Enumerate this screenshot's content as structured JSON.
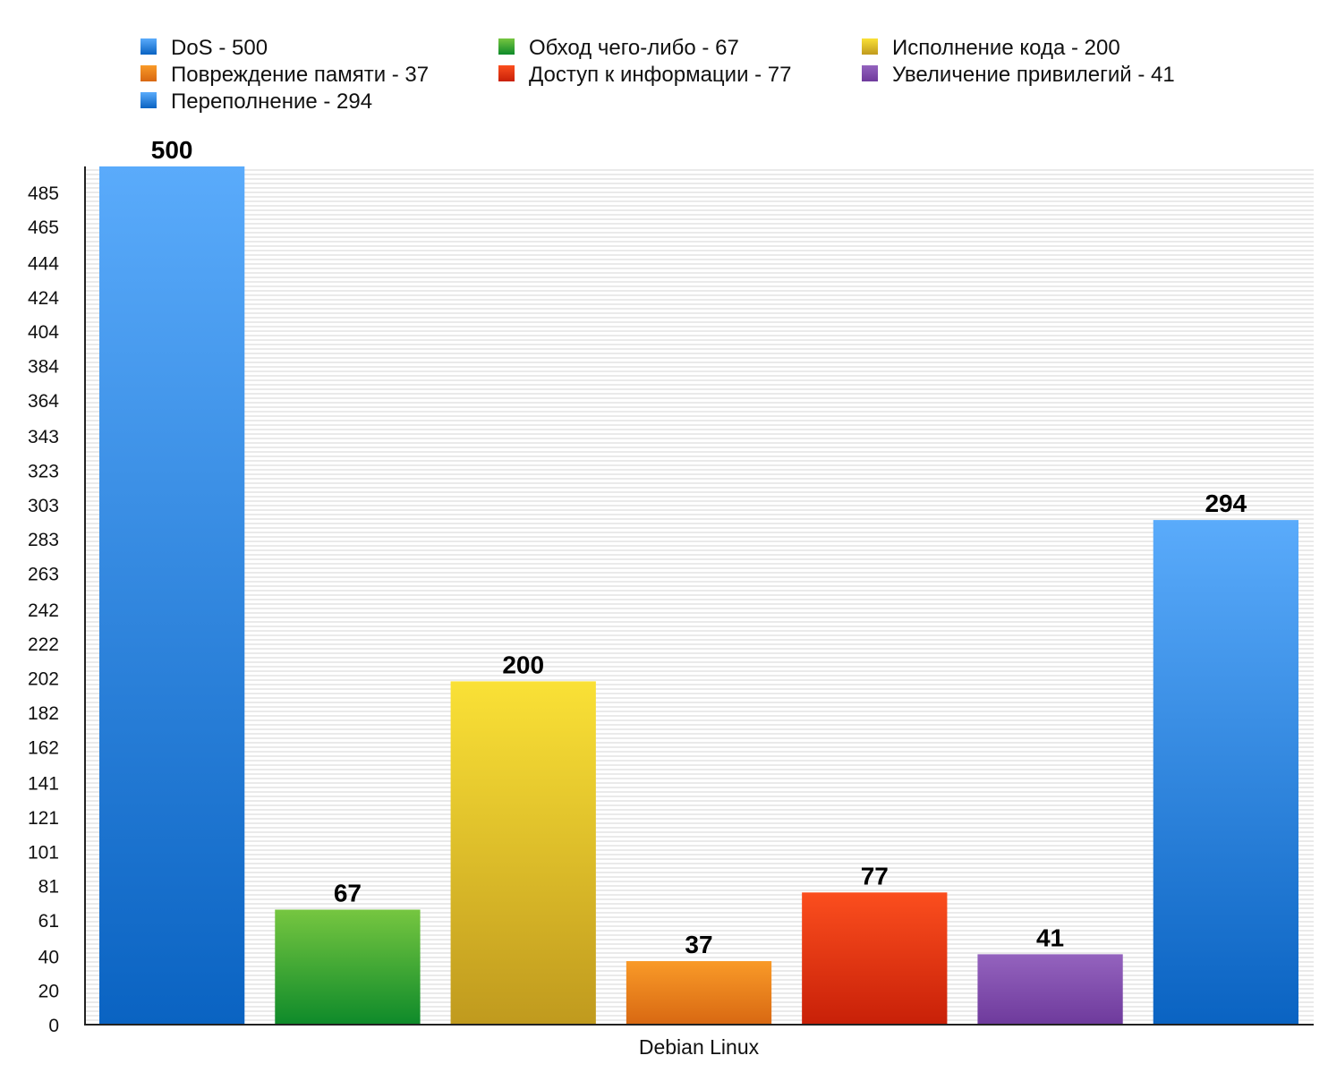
{
  "chart_data": {
    "type": "bar",
    "title": "",
    "xlabel": "",
    "ylabel": "",
    "categories": [
      "Debian Linux"
    ],
    "ylim": [
      0,
      500
    ],
    "yticks": [
      "0",
      "20",
      "40",
      "61",
      "81",
      "101",
      "121",
      "141",
      "162",
      "182",
      "202",
      "222",
      "242",
      "263",
      "283",
      "303",
      "323",
      "343",
      "364",
      "384",
      "404",
      "424",
      "444",
      "465",
      "485"
    ],
    "grid": true,
    "legend_position": "top",
    "series": [
      {
        "name": "DoS",
        "values": [
          500
        ],
        "label": "DoS - 500",
        "color_top": "#5aabfb",
        "color_bottom": "#0a63c2",
        "legend_color": "#2f86e6"
      },
      {
        "name": "Обход чего-либо",
        "values": [
          67
        ],
        "label": "Обход чего-либо - 67",
        "color_top": "#76c640",
        "color_bottom": "#0e8a2a",
        "legend_color": "#2aa03a"
      },
      {
        "name": "Исполнение кода",
        "values": [
          200
        ],
        "label": "Исполнение кода - 200",
        "color_top": "#fae136",
        "color_bottom": "#c09a1e",
        "legend_color": "#e8c820"
      },
      {
        "name": "Повреждение памяти",
        "values": [
          37
        ],
        "label": "Повреждение памяти - 37",
        "color_top": "#f99a28",
        "color_bottom": "#d86812",
        "legend_color": "#ee8a1c"
      },
      {
        "name": "Доступ к информации",
        "values": [
          77
        ],
        "label": "Доступ к информации - 77",
        "color_top": "#fb4e1e",
        "color_bottom": "#c82008",
        "legend_color": "#e43a12"
      },
      {
        "name": "Увеличение привилегий",
        "values": [
          41
        ],
        "label": "Увеличение привилегий - 41",
        "color_top": "#9463be",
        "color_bottom": "#6e3a9c",
        "legend_color": "#8650b4"
      },
      {
        "name": "Переполнение",
        "values": [
          294
        ],
        "label": "Переполнение - 294",
        "color_top": "#5aabfb",
        "color_bottom": "#0a63c2",
        "legend_color": "#2f86e6"
      }
    ],
    "legend_order": [
      0,
      1,
      2,
      3,
      4,
      5,
      6
    ]
  }
}
